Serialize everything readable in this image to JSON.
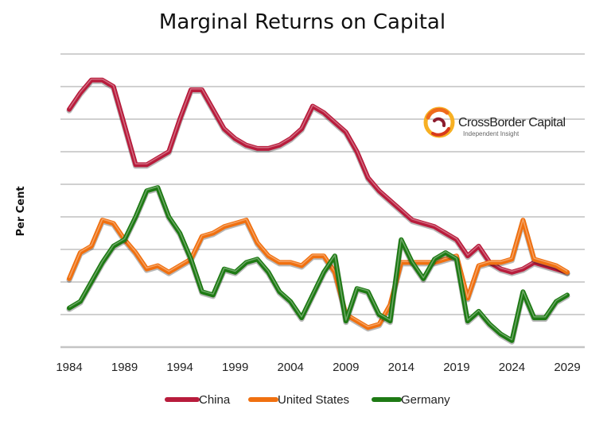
{
  "chart_data": {
    "type": "line",
    "title": "Marginal Returns on Capital",
    "xlabel": "",
    "ylabel": "Per Cent",
    "xlim": [
      1984,
      2029
    ],
    "ylim": [
      0,
      9
    ],
    "y_tick_labels_shown": false,
    "grid": "horizontal",
    "legend": "bottom",
    "x_ticks": [
      1984,
      1989,
      1994,
      1999,
      2004,
      2009,
      2014,
      2019,
      2024,
      2029
    ],
    "x": [
      1984,
      1985,
      1986,
      1987,
      1988,
      1989,
      1990,
      1991,
      1992,
      1993,
      1994,
      1995,
      1996,
      1997,
      1998,
      1999,
      2000,
      2001,
      2002,
      2003,
      2004,
      2005,
      2006,
      2007,
      2008,
      2009,
      2010,
      2011,
      2012,
      2013,
      2014,
      2015,
      2016,
      2017,
      2018,
      2019,
      2020,
      2021,
      2022,
      2023,
      2024,
      2025,
      2026,
      2027,
      2028,
      2029
    ],
    "series": [
      {
        "name": "China",
        "color": "#b81c3c",
        "values": [
          7.3,
          7.8,
          8.2,
          8.2,
          8.0,
          6.8,
          5.6,
          5.6,
          5.8,
          6.0,
          7.0,
          7.9,
          7.9,
          7.3,
          6.7,
          6.4,
          6.2,
          6.1,
          6.1,
          6.2,
          6.4,
          6.7,
          7.4,
          7.2,
          6.9,
          6.6,
          6.0,
          5.2,
          4.8,
          4.5,
          4.2,
          3.9,
          3.8,
          3.7,
          3.5,
          3.3,
          2.8,
          3.1,
          2.6,
          2.4,
          2.3,
          2.4,
          2.6,
          2.5,
          2.4,
          2.3
        ]
      },
      {
        "name": "United States",
        "color": "#f07010",
        "values": [
          2.1,
          2.9,
          3.1,
          3.9,
          3.8,
          3.3,
          2.9,
          2.4,
          2.5,
          2.3,
          2.5,
          2.7,
          3.4,
          3.5,
          3.7,
          3.8,
          3.9,
          3.2,
          2.8,
          2.6,
          2.6,
          2.5,
          2.8,
          2.8,
          2.3,
          1.0,
          0.8,
          0.6,
          0.7,
          1.3,
          2.6,
          2.6,
          2.6,
          2.6,
          2.7,
          2.8,
          1.5,
          2.5,
          2.6,
          2.6,
          2.7,
          3.9,
          2.7,
          2.6,
          2.5,
          2.3
        ]
      },
      {
        "name": "Germany",
        "color": "#1e7a14",
        "values": [
          1.2,
          1.4,
          2.0,
          2.6,
          3.1,
          3.3,
          4.0,
          4.8,
          4.9,
          4.0,
          3.5,
          2.7,
          1.7,
          1.6,
          2.4,
          2.3,
          2.6,
          2.7,
          2.3,
          1.7,
          1.4,
          0.9,
          1.6,
          2.3,
          2.8,
          0.8,
          1.8,
          1.7,
          1.0,
          0.8,
          3.3,
          2.6,
          2.1,
          2.7,
          2.9,
          2.7,
          0.8,
          1.1,
          0.7,
          0.4,
          0.2,
          1.7,
          0.9,
          0.9,
          1.4,
          1.6
        ]
      }
    ]
  },
  "logo": {
    "name": "CrossBorder Capital",
    "tagline": "Independent Insight"
  },
  "colors": {
    "background": "#ffffff",
    "grid": "#d0d0d0"
  }
}
